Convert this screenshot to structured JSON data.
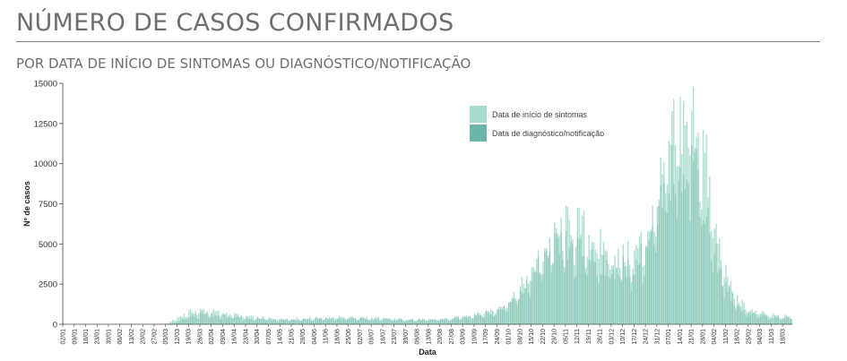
{
  "page": {
    "title": "NÚMERO DE CASOS CONFIRMADOS",
    "subtitle": "POR DATA DE INÍCIO DE SINTOMAS OU DIAGNÓSTICO/NOTIFICAÇÃO"
  },
  "colors": {
    "onset": "#a8dccf",
    "diagnosis": "#6cb5a8",
    "axis": "#444444"
  },
  "chart_data": {
    "type": "bar",
    "stacked": false,
    "xlabel": "Data",
    "ylabel": "Nº de casos",
    "ylim": [
      0,
      15000
    ],
    "yticks": [
      0,
      2500,
      5000,
      7500,
      10000,
      12500,
      15000
    ],
    "x_range": [
      "2020-01-02",
      "2021-03-20"
    ],
    "x_tick_labels": [
      "02/01",
      "09/01",
      "16/01",
      "23/01",
      "30/01",
      "06/02",
      "13/02",
      "20/02",
      "27/02",
      "05/03",
      "12/03",
      "19/03",
      "26/03",
      "02/04",
      "09/04",
      "16/04",
      "23/04",
      "30/04",
      "07/05",
      "14/05",
      "21/05",
      "28/05",
      "04/06",
      "11/06",
      "18/06",
      "25/06",
      "02/07",
      "09/07",
      "16/07",
      "23/07",
      "30/07",
      "06/08",
      "13/08",
      "20/08",
      "27/08",
      "03/09",
      "10/09",
      "17/09",
      "24/09",
      "01/10",
      "08/10",
      "15/10",
      "22/10",
      "29/10",
      "05/11",
      "12/11",
      "19/11",
      "26/11",
      "03/12",
      "10/12",
      "17/12",
      "24/12",
      "31/12",
      "07/01",
      "14/01",
      "21/01",
      "28/01",
      "04/02",
      "11/02",
      "18/02",
      "25/02",
      "04/03",
      "11/03",
      "18/03"
    ],
    "legend": {
      "position": "top-right",
      "entries": [
        "Data de início de sintomas",
        "Data de diagnóstico/notificação"
      ]
    },
    "grid": false,
    "weekly_series": {
      "week_start_labels": [
        "02/01",
        "09/01",
        "16/01",
        "23/01",
        "30/01",
        "06/02",
        "13/02",
        "20/02",
        "27/02",
        "05/03",
        "12/03",
        "19/03",
        "26/03",
        "02/04",
        "09/04",
        "16/04",
        "23/04",
        "30/04",
        "07/05",
        "14/05",
        "21/05",
        "28/05",
        "04/06",
        "11/06",
        "18/06",
        "25/06",
        "02/07",
        "09/07",
        "16/07",
        "23/07",
        "30/07",
        "06/08",
        "13/08",
        "20/08",
        "27/08",
        "03/09",
        "10/09",
        "17/09",
        "24/09",
        "01/10",
        "08/10",
        "15/10",
        "22/10",
        "29/10",
        "05/11",
        "12/11",
        "19/11",
        "26/11",
        "03/12",
        "10/12",
        "17/12",
        "24/12",
        "31/12",
        "07/01",
        "14/01",
        "21/01",
        "28/01",
        "04/02",
        "11/02",
        "18/02",
        "25/02",
        "04/03",
        "11/03",
        "18/03"
      ],
      "series": [
        {
          "name": "Data de início de sintomas",
          "values": [
            0,
            0,
            0,
            0,
            0,
            0,
            0,
            0,
            0,
            20,
            400,
            750,
            850,
            800,
            700,
            600,
            480,
            400,
            380,
            360,
            350,
            360,
            380,
            400,
            420,
            420,
            400,
            380,
            360,
            340,
            320,
            300,
            300,
            320,
            360,
            480,
            620,
            750,
            900,
            1400,
            2200,
            3300,
            4300,
            5200,
            6000,
            6000,
            5600,
            4800,
            4300,
            4100,
            4300,
            5500,
            7500,
            10500,
            12500,
            13500,
            11000,
            6000,
            3000,
            1500,
            900,
            700,
            550,
            480
          ]
        },
        {
          "name": "Data de diagnóstico/notificação",
          "values": [
            0,
            0,
            0,
            0,
            0,
            0,
            0,
            0,
            0,
            0,
            150,
            450,
            600,
            550,
            500,
            420,
            380,
            330,
            300,
            290,
            280,
            300,
            320,
            350,
            360,
            360,
            340,
            320,
            300,
            280,
            270,
            260,
            260,
            280,
            320,
            420,
            560,
            700,
            850,
            1200,
            1900,
            2900,
            3900,
            4600,
            4700,
            4500,
            4200,
            3800,
            3500,
            3400,
            3600,
            4500,
            6300,
            8800,
            10200,
            10500,
            8000,
            4500,
            2200,
            1100,
            700,
            550,
            430,
            380
          ]
        }
      ]
    }
  }
}
